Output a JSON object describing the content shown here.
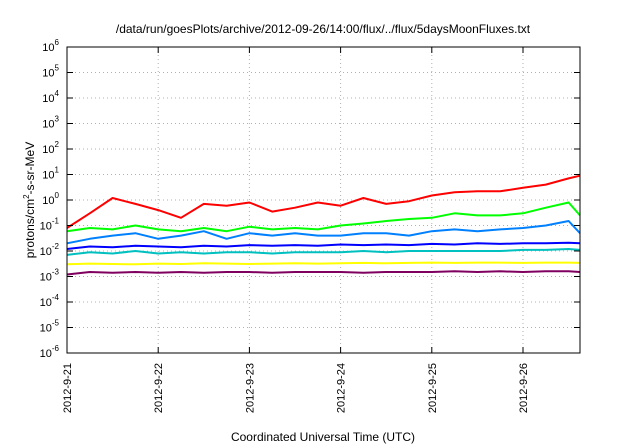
{
  "chart_data": {
    "type": "line",
    "title": "/data/run/goesPlots/archive/2012-09-26/14:00/flux/../flux/5daysMoonFluxes.txt",
    "xlabel": "Coordinated Universal Time (UTC)",
    "ylabel": {
      "base": "protons/cm",
      "sup": "2",
      "rest": "-s-sr-MeV"
    },
    "x_range": [
      "2012-09-21",
      "2012-09-26 15:00"
    ],
    "x_ticks": [
      "2012-9-21",
      "2012-9-22",
      "2012-9-23",
      "2012-9-24",
      "2012-9-25",
      "2012-9-26"
    ],
    "y_scale": "log",
    "ylim": [
      1e-06,
      1000000.0
    ],
    "y_ticks": [
      {
        "value": 1e-06,
        "label": "10",
        "exp": "-6"
      },
      {
        "value": 1e-05,
        "label": "10",
        "exp": "-5"
      },
      {
        "value": 0.0001,
        "label": "10",
        "exp": "-4"
      },
      {
        "value": 0.001,
        "label": "10",
        "exp": "-3"
      },
      {
        "value": 0.01,
        "label": "10",
        "exp": "-2"
      },
      {
        "value": 0.1,
        "label": "10",
        "exp": "-1"
      },
      {
        "value": 1,
        "label": "10",
        "exp": "0"
      },
      {
        "value": 10,
        "label": "10",
        "exp": "1"
      },
      {
        "value": 100,
        "label": "10",
        "exp": "2"
      },
      {
        "value": 1000,
        "label": "10",
        "exp": "3"
      },
      {
        "value": 10000,
        "label": "10",
        "exp": "4"
      },
      {
        "value": 100000,
        "label": "10",
        "exp": "5"
      },
      {
        "value": 1000000,
        "label": "10",
        "exp": "6"
      }
    ],
    "grid": true,
    "series": [
      {
        "color": "#ff0000",
        "x": [
          "2012-09-21",
          "2012-09-21 06:00",
          "2012-09-21 12:00",
          "2012-09-21 18:00",
          "2012-09-22",
          "2012-09-22 06:00",
          "2012-09-22 12:00",
          "2012-09-22 18:00",
          "2012-09-23",
          "2012-09-23 06:00",
          "2012-09-23 12:00",
          "2012-09-23 18:00",
          "2012-09-24",
          "2012-09-24 06:00",
          "2012-09-24 12:00",
          "2012-09-24 18:00",
          "2012-09-25",
          "2012-09-25 06:00",
          "2012-09-25 12:00",
          "2012-09-25 18:00",
          "2012-09-26",
          "2012-09-26 06:00",
          "2012-09-26 12:00",
          "2012-09-26 15:00"
        ],
        "y": [
          0.08,
          0.3,
          1.2,
          0.7,
          0.4,
          0.2,
          0.7,
          0.6,
          0.8,
          0.35,
          0.5,
          0.8,
          0.6,
          1.2,
          0.7,
          0.9,
          1.5,
          2.0,
          2.2,
          2.2,
          3.0,
          4.0,
          7.0,
          9.0
        ]
      },
      {
        "color": "#00ff00",
        "x": [
          "2012-09-21",
          "2012-09-21 06:00",
          "2012-09-21 12:00",
          "2012-09-21 18:00",
          "2012-09-22",
          "2012-09-22 06:00",
          "2012-09-22 12:00",
          "2012-09-22 18:00",
          "2012-09-23",
          "2012-09-23 06:00",
          "2012-09-23 12:00",
          "2012-09-23 18:00",
          "2012-09-24",
          "2012-09-24 06:00",
          "2012-09-24 12:00",
          "2012-09-24 18:00",
          "2012-09-25",
          "2012-09-25 06:00",
          "2012-09-25 12:00",
          "2012-09-25 18:00",
          "2012-09-26",
          "2012-09-26 06:00",
          "2012-09-26 12:00",
          "2012-09-26 15:00"
        ],
        "y": [
          0.06,
          0.08,
          0.07,
          0.1,
          0.07,
          0.06,
          0.08,
          0.06,
          0.09,
          0.07,
          0.08,
          0.07,
          0.1,
          0.12,
          0.15,
          0.18,
          0.2,
          0.3,
          0.25,
          0.25,
          0.3,
          0.5,
          0.8,
          0.25
        ]
      },
      {
        "color": "#0080ff",
        "x": [
          "2012-09-21",
          "2012-09-21 06:00",
          "2012-09-21 12:00",
          "2012-09-21 18:00",
          "2012-09-22",
          "2012-09-22 06:00",
          "2012-09-22 12:00",
          "2012-09-22 18:00",
          "2012-09-23",
          "2012-09-23 06:00",
          "2012-09-23 12:00",
          "2012-09-23 18:00",
          "2012-09-24",
          "2012-09-24 06:00",
          "2012-09-24 12:00",
          "2012-09-24 18:00",
          "2012-09-25",
          "2012-09-25 06:00",
          "2012-09-25 12:00",
          "2012-09-25 18:00",
          "2012-09-26",
          "2012-09-26 06:00",
          "2012-09-26 12:00",
          "2012-09-26 15:00"
        ],
        "y": [
          0.02,
          0.03,
          0.04,
          0.05,
          0.03,
          0.04,
          0.06,
          0.03,
          0.05,
          0.04,
          0.05,
          0.04,
          0.04,
          0.05,
          0.05,
          0.04,
          0.06,
          0.07,
          0.06,
          0.07,
          0.08,
          0.1,
          0.15,
          0.05
        ]
      },
      {
        "color": "#0000ff",
        "x": [
          "2012-09-21",
          "2012-09-21 06:00",
          "2012-09-21 12:00",
          "2012-09-21 18:00",
          "2012-09-22",
          "2012-09-22 06:00",
          "2012-09-22 12:00",
          "2012-09-22 18:00",
          "2012-09-23",
          "2012-09-23 06:00",
          "2012-09-23 12:00",
          "2012-09-23 18:00",
          "2012-09-24",
          "2012-09-24 06:00",
          "2012-09-24 12:00",
          "2012-09-24 18:00",
          "2012-09-25",
          "2012-09-25 06:00",
          "2012-09-25 12:00",
          "2012-09-25 18:00",
          "2012-09-26",
          "2012-09-26 06:00",
          "2012-09-26 12:00",
          "2012-09-26 15:00"
        ],
        "y": [
          0.012,
          0.015,
          0.014,
          0.016,
          0.015,
          0.014,
          0.016,
          0.015,
          0.017,
          0.016,
          0.017,
          0.016,
          0.018,
          0.017,
          0.018,
          0.017,
          0.019,
          0.018,
          0.02,
          0.019,
          0.02,
          0.02,
          0.021,
          0.02
        ]
      },
      {
        "color": "#00c0c0",
        "x": [
          "2012-09-21",
          "2012-09-21 06:00",
          "2012-09-21 12:00",
          "2012-09-21 18:00",
          "2012-09-22",
          "2012-09-22 06:00",
          "2012-09-22 12:00",
          "2012-09-22 18:00",
          "2012-09-23",
          "2012-09-23 06:00",
          "2012-09-23 12:00",
          "2012-09-23 18:00",
          "2012-09-24",
          "2012-09-24 06:00",
          "2012-09-24 12:00",
          "2012-09-24 18:00",
          "2012-09-25",
          "2012-09-25 06:00",
          "2012-09-25 12:00",
          "2012-09-25 18:00",
          "2012-09-26",
          "2012-09-26 06:00",
          "2012-09-26 12:00",
          "2012-09-26 15:00"
        ],
        "y": [
          0.007,
          0.009,
          0.008,
          0.01,
          0.008,
          0.009,
          0.008,
          0.009,
          0.009,
          0.008,
          0.009,
          0.009,
          0.009,
          0.01,
          0.009,
          0.01,
          0.01,
          0.01,
          0.01,
          0.01,
          0.011,
          0.011,
          0.012,
          0.011
        ]
      },
      {
        "color": "#ffff00",
        "x": [
          "2012-09-21",
          "2012-09-21 06:00",
          "2012-09-21 12:00",
          "2012-09-21 18:00",
          "2012-09-22",
          "2012-09-22 06:00",
          "2012-09-22 12:00",
          "2012-09-22 18:00",
          "2012-09-23",
          "2012-09-23 06:00",
          "2012-09-23 12:00",
          "2012-09-23 18:00",
          "2012-09-24",
          "2012-09-24 06:00",
          "2012-09-24 12:00",
          "2012-09-24 18:00",
          "2012-09-25",
          "2012-09-25 06:00",
          "2012-09-25 12:00",
          "2012-09-25 18:00",
          "2012-09-26",
          "2012-09-26 06:00",
          "2012-09-26 12:00",
          "2012-09-26 15:00"
        ],
        "y": [
          0.003,
          0.0032,
          0.0031,
          0.003,
          0.0032,
          0.0031,
          0.0033,
          0.0032,
          0.0031,
          0.0032,
          0.0033,
          0.0032,
          0.0033,
          0.0034,
          0.0033,
          0.0034,
          0.0035,
          0.0034,
          0.0035,
          0.0035,
          0.0034,
          0.0035,
          0.0035,
          0.0034
        ]
      },
      {
        "color": "#800060",
        "x": [
          "2012-09-21",
          "2012-09-21 06:00",
          "2012-09-21 12:00",
          "2012-09-21 18:00",
          "2012-09-22",
          "2012-09-22 06:00",
          "2012-09-22 12:00",
          "2012-09-22 18:00",
          "2012-09-23",
          "2012-09-23 06:00",
          "2012-09-23 12:00",
          "2012-09-23 18:00",
          "2012-09-24",
          "2012-09-24 06:00",
          "2012-09-24 12:00",
          "2012-09-24 18:00",
          "2012-09-25",
          "2012-09-25 06:00",
          "2012-09-25 12:00",
          "2012-09-25 18:00",
          "2012-09-26",
          "2012-09-26 06:00",
          "2012-09-26 12:00",
          "2012-09-26 15:00"
        ],
        "y": [
          0.0012,
          0.0015,
          0.0014,
          0.0015,
          0.0014,
          0.0015,
          0.0014,
          0.0015,
          0.0015,
          0.0014,
          0.0015,
          0.0015,
          0.0015,
          0.0014,
          0.0015,
          0.0015,
          0.0015,
          0.0016,
          0.0015,
          0.0016,
          0.0015,
          0.0016,
          0.0016,
          0.0015
        ]
      }
    ]
  }
}
